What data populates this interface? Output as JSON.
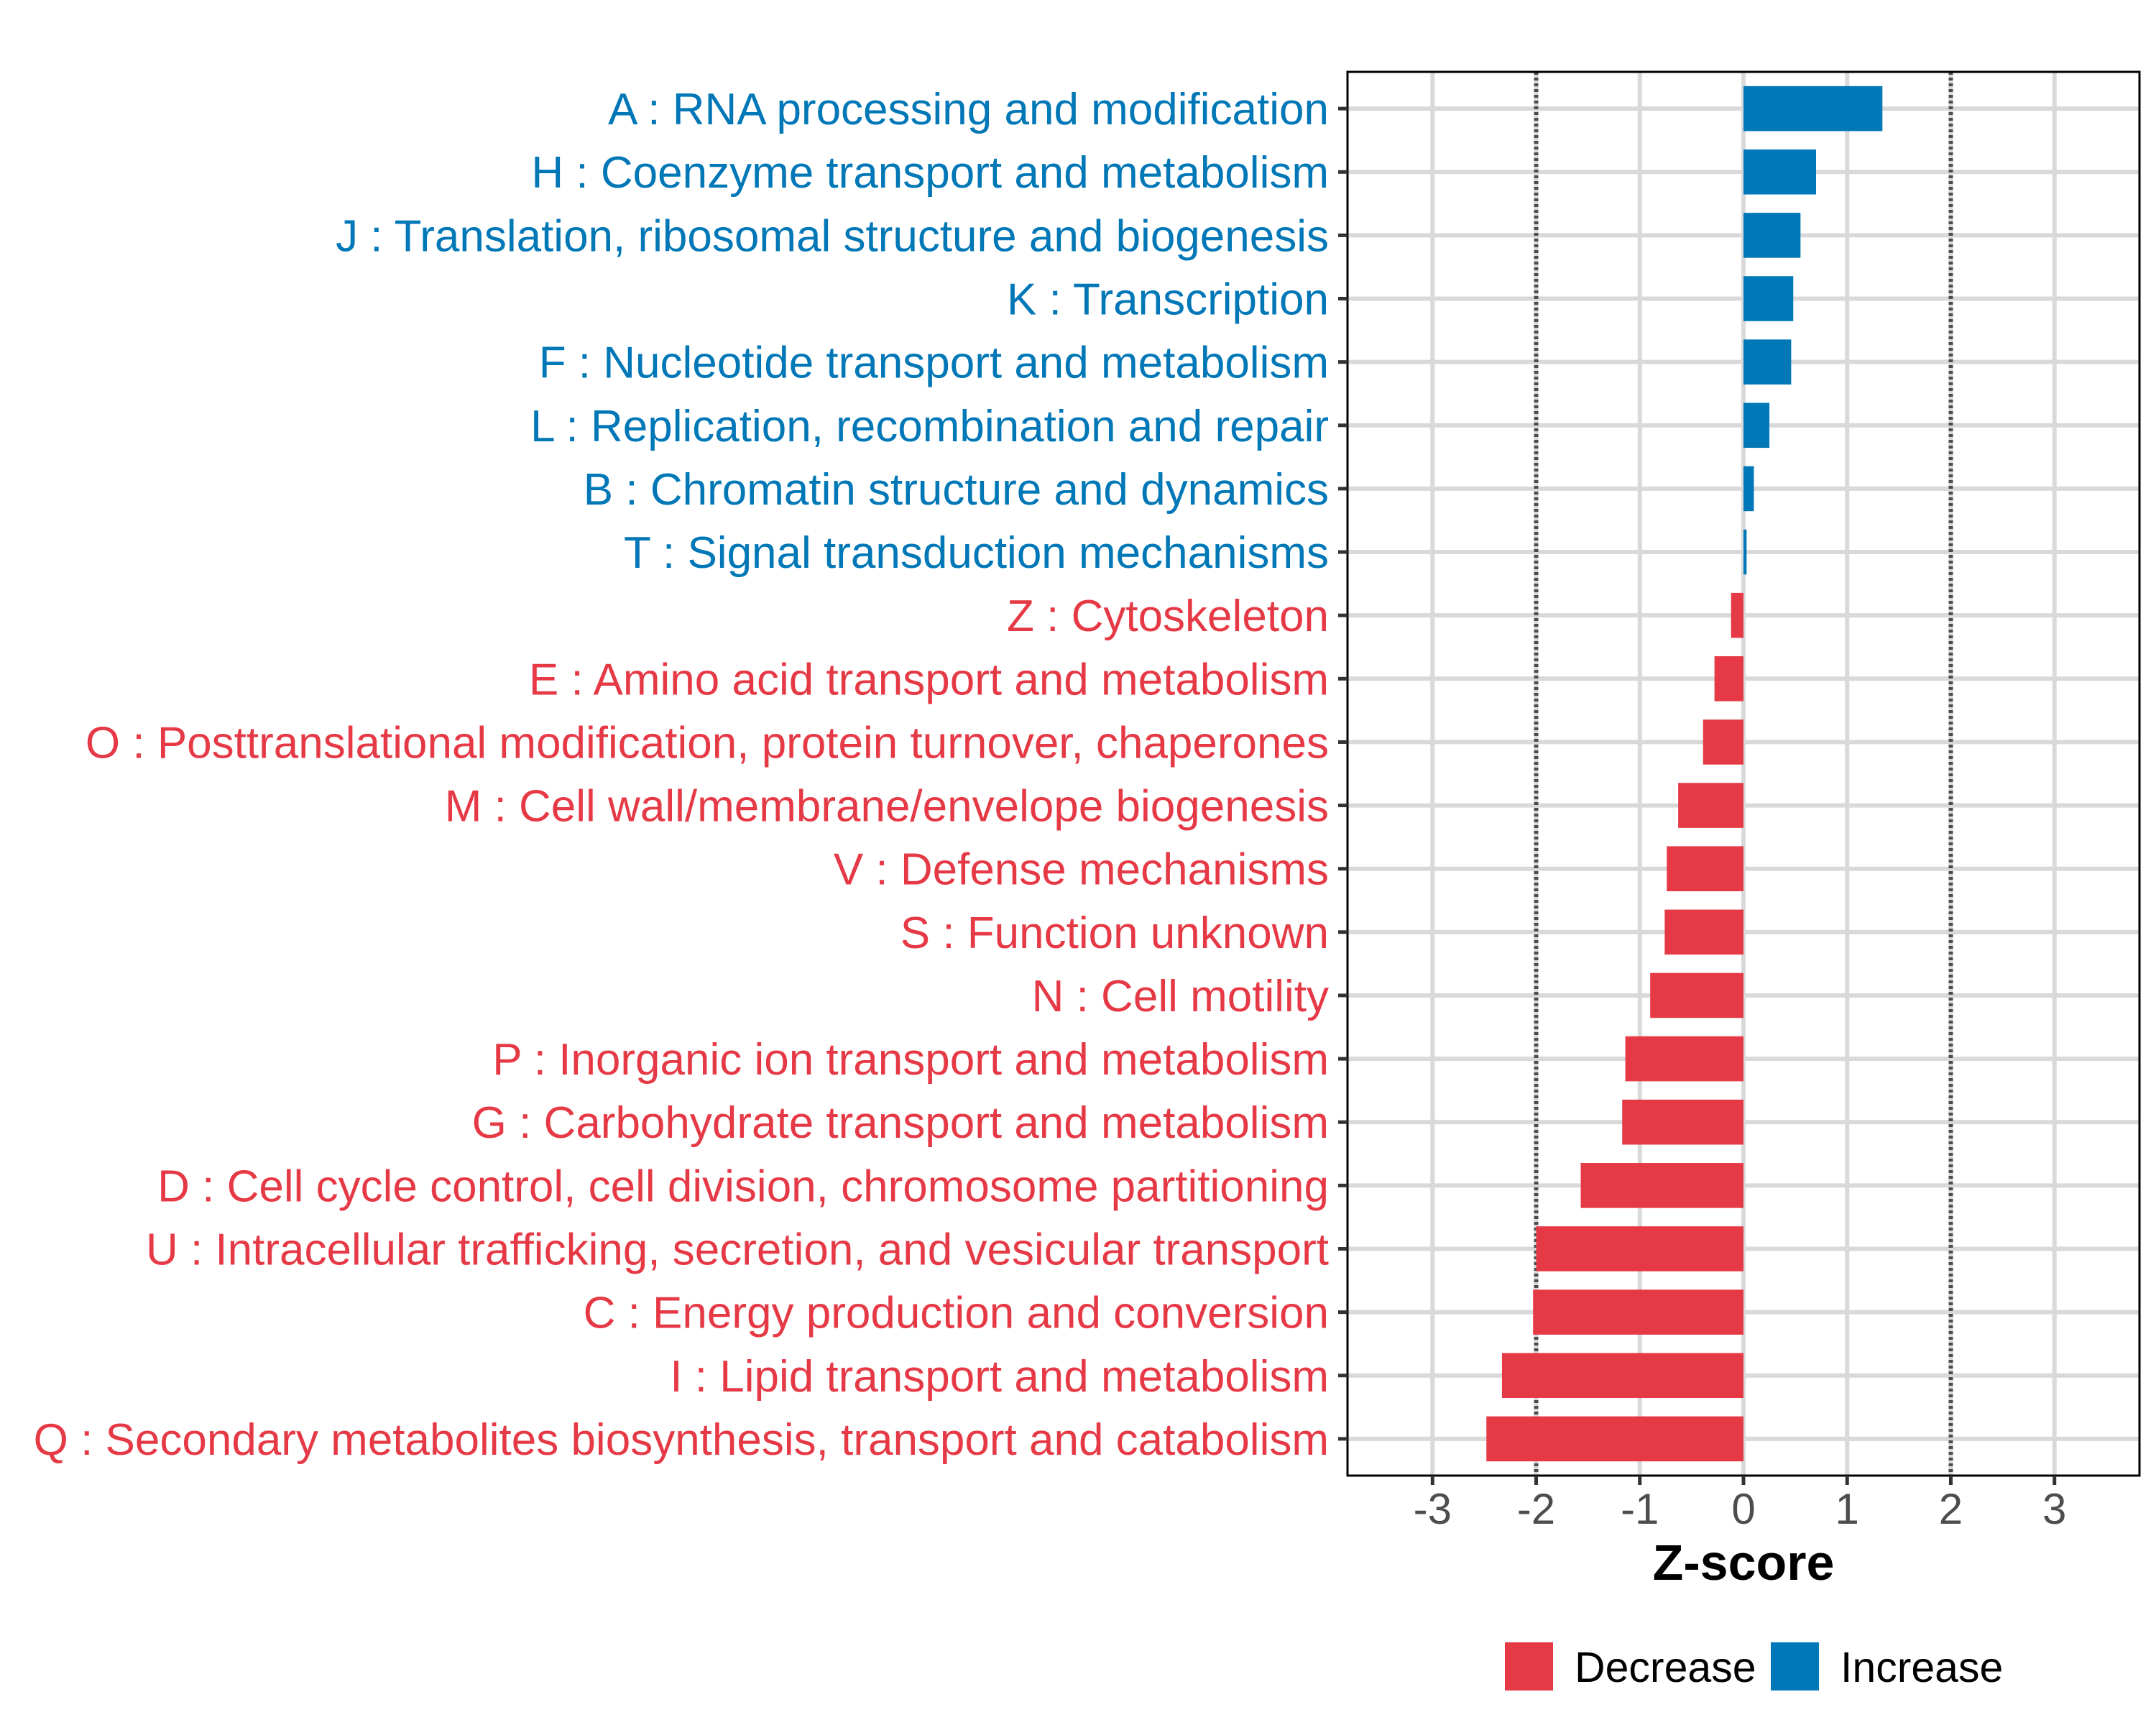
{
  "chart_data": {
    "type": "bar",
    "orientation": "horizontal",
    "title": "",
    "xlabel": "Z-score",
    "ylabel": "",
    "xlim": [
      -3.82,
      3.82
    ],
    "x_ticks": [
      -3,
      -2,
      -1,
      0,
      1,
      2,
      3
    ],
    "x_tick_labels": [
      "-3",
      "-2",
      "-1",
      "0",
      "1",
      "2",
      "3"
    ],
    "reference_lines": [
      {
        "x": -2,
        "style": "dotted"
      },
      {
        "x": 2,
        "style": "dotted"
      }
    ],
    "grid": true,
    "legend_position": "bottom",
    "legend": [
      {
        "name": "Decrease",
        "color": "#E63946"
      },
      {
        "name": "Increase",
        "color": "#0077B6"
      }
    ],
    "categories": [
      "A : RNA processing and modification",
      "H : Coenzyme transport and metabolism",
      "J : Translation, ribosomal structure and biogenesis",
      "K : Transcription",
      "F : Nucleotide transport and metabolism",
      "L : Replication, recombination and repair",
      "B : Chromatin structure and dynamics",
      "T : Signal transduction mechanisms",
      "Z : Cytoskeleton",
      "E : Amino acid transport and metabolism",
      "O : Posttranslational modification, protein turnover, chaperones",
      "M : Cell wall/membrane/envelope biogenesis",
      "V : Defense mechanisms",
      "S : Function unknown",
      "N : Cell motility",
      "P : Inorganic ion transport and metabolism",
      "G : Carbohydrate transport and metabolism",
      "D : Cell cycle control, cell division, chromosome partitioning",
      "U : Intracellular trafficking, secretion, and vesicular transport",
      "C : Energy production and conversion",
      "I : Lipid transport and metabolism",
      "Q : Secondary metabolites biosynthesis, transport and catabolism"
    ],
    "values": [
      1.34,
      0.7,
      0.55,
      0.48,
      0.46,
      0.25,
      0.1,
      0.03,
      -0.12,
      -0.28,
      -0.39,
      -0.63,
      -0.74,
      -0.76,
      -0.9,
      -1.14,
      -1.17,
      -1.57,
      -2.0,
      -2.03,
      -2.33,
      -2.48
    ],
    "groups": [
      "Increase",
      "Increase",
      "Increase",
      "Increase",
      "Increase",
      "Increase",
      "Increase",
      "Increase",
      "Decrease",
      "Decrease",
      "Decrease",
      "Decrease",
      "Decrease",
      "Decrease",
      "Decrease",
      "Decrease",
      "Decrease",
      "Decrease",
      "Decrease",
      "Decrease",
      "Decrease",
      "Decrease"
    ]
  },
  "colors": {
    "increase": "#0077B6",
    "decrease": "#E63946",
    "grid": "#D9D9D9",
    "reference_line": "#4D4D4D",
    "tick_text": "#4D4D4D",
    "border": "#000000"
  }
}
